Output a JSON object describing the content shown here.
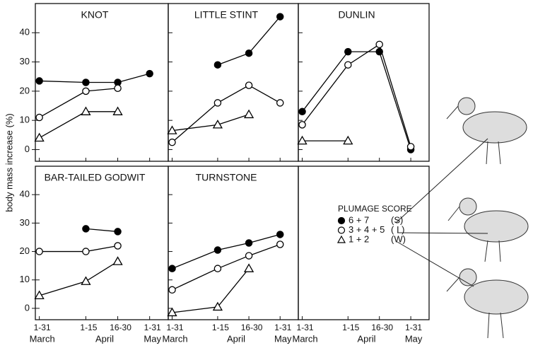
{
  "y_label": "body mass increase (%)",
  "x_axis": {
    "categories": [
      "1-31",
      "1-15",
      "16-30",
      "1-31"
    ],
    "months": [
      "March",
      "April",
      "May"
    ]
  },
  "legend": {
    "title": "PLUMAGE SCORE",
    "codes": [
      "(S)",
      "( I )",
      "(W)"
    ]
  },
  "chart_data": [
    {
      "type": "line",
      "title": "KNOT",
      "ylim": [
        -4,
        50
      ],
      "yticks": [
        0,
        10,
        20,
        30,
        40
      ],
      "series": [
        {
          "name": "6 + 7",
          "marker": "filled-circle",
          "color": "#000000",
          "values": [
            23.5,
            23,
            23,
            26
          ]
        },
        {
          "name": "3 + 4 + 5",
          "marker": "open-circle",
          "color": "#000000",
          "values": [
            11,
            20,
            21,
            null
          ]
        },
        {
          "name": "1 + 2",
          "marker": "open-triangle",
          "color": "#000000",
          "values": [
            4,
            13,
            13,
            null
          ]
        }
      ]
    },
    {
      "type": "line",
      "title": "LITTLE STINT",
      "ylim": [
        -4,
        50
      ],
      "yticks": [
        0,
        10,
        20,
        30,
        40
      ],
      "series": [
        {
          "name": "6 + 7",
          "marker": "filled-circle",
          "color": "#000000",
          "values": [
            null,
            29,
            33,
            45.5
          ]
        },
        {
          "name": "3 + 4 + 5",
          "marker": "open-circle",
          "color": "#000000",
          "values": [
            2.5,
            16,
            22,
            16
          ]
        },
        {
          "name": "1 + 2",
          "marker": "open-triangle",
          "color": "#000000",
          "values": [
            6.5,
            8.5,
            12,
            null
          ]
        }
      ]
    },
    {
      "type": "line",
      "title": "DUNLIN",
      "ylim": [
        -4,
        50
      ],
      "yticks": [
        0,
        10,
        20,
        30,
        40
      ],
      "series": [
        {
          "name": "6 + 7",
          "marker": "filled-circle",
          "color": "#000000",
          "values": [
            13,
            33.5,
            33.5,
            0
          ]
        },
        {
          "name": "3 + 4 + 5",
          "marker": "open-circle",
          "color": "#000000",
          "values": [
            8.5,
            29,
            36,
            1
          ]
        },
        {
          "name": "1 + 2",
          "marker": "open-triangle",
          "color": "#000000",
          "values": [
            3,
            3,
            null,
            null
          ]
        }
      ]
    },
    {
      "type": "line",
      "title": "BAR-TAILED GODWIT",
      "ylim": [
        -4,
        50
      ],
      "yticks": [
        0,
        10,
        20,
        30,
        40
      ],
      "series": [
        {
          "name": "6 + 7",
          "marker": "filled-circle",
          "color": "#000000",
          "values": [
            null,
            28,
            27,
            null
          ]
        },
        {
          "name": "3 + 4 + 5",
          "marker": "open-circle",
          "color": "#000000",
          "values": [
            20,
            20,
            22,
            null
          ]
        },
        {
          "name": "1 + 2",
          "marker": "open-triangle",
          "color": "#000000",
          "values": [
            4.5,
            9.5,
            16.5,
            null
          ]
        }
      ]
    },
    {
      "type": "line",
      "title": "TURNSTONE",
      "ylim": [
        -4,
        50
      ],
      "yticks": [
        0,
        10,
        20,
        30,
        40
      ],
      "series": [
        {
          "name": "6 + 7",
          "marker": "filled-circle",
          "color": "#000000",
          "values": [
            14,
            20.5,
            23,
            26
          ]
        },
        {
          "name": "3 + 4 + 5",
          "marker": "open-circle",
          "color": "#000000",
          "values": [
            6.5,
            14,
            18.5,
            22.5
          ]
        },
        {
          "name": "1 + 2",
          "marker": "open-triangle",
          "color": "#000000",
          "values": [
            -1.5,
            0.5,
            14,
            null
          ]
        }
      ]
    }
  ]
}
